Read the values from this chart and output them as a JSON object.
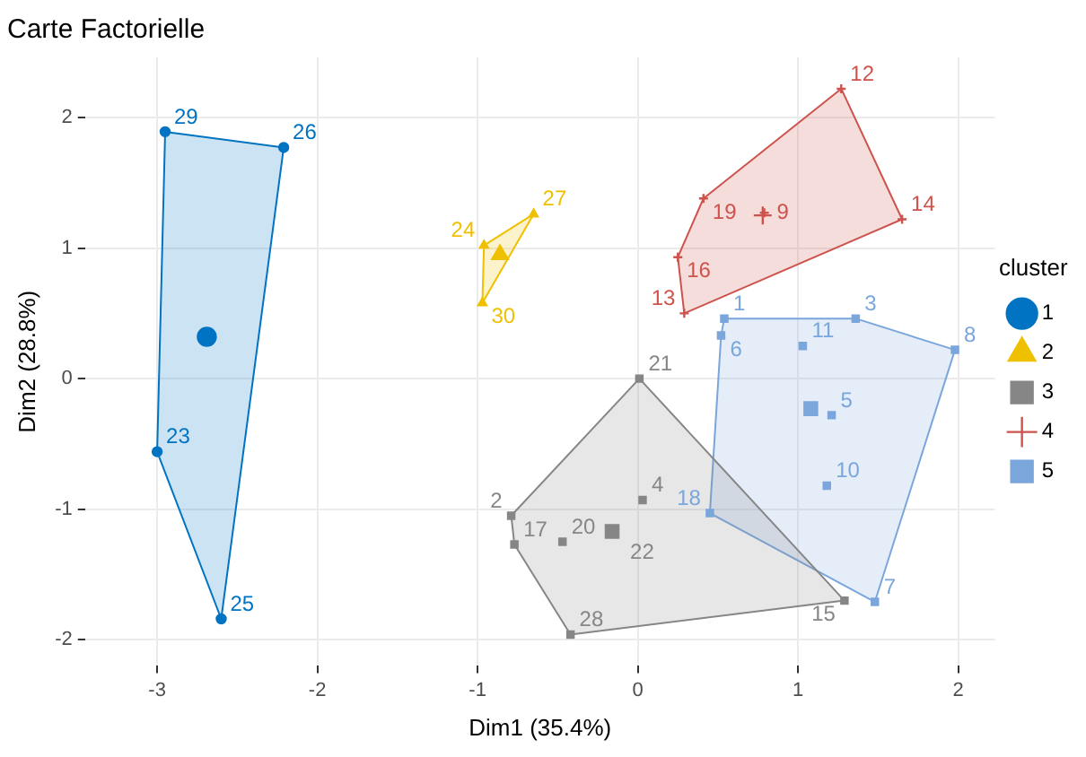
{
  "chart_data": {
    "type": "scatter",
    "title": "Carte Factorielle",
    "xlabel": "Dim1 (35.4%)",
    "ylabel": "Dim2 (28.8%)",
    "legend_title": "cluster",
    "legend": "right",
    "grid": true,
    "xlim": [
      -3.45,
      2.23
    ],
    "ylim": [
      -2.2,
      2.46
    ],
    "xticks": [
      -3,
      -2,
      -1,
      0,
      1,
      2
    ],
    "yticks": [
      -2,
      -1,
      0,
      1,
      2
    ],
    "series": [
      {
        "name": "1",
        "color": "#0073c2",
        "marker": "circle",
        "x": [
          -2.95,
          -2.21,
          -3.0,
          -2.6
        ],
        "values": [
          1.89,
          1.77,
          -0.56,
          -1.84
        ]
      },
      {
        "name": "2",
        "color": "#efc000",
        "marker": "triangle",
        "x": [
          -0.96,
          -0.65,
          -0.97
        ],
        "values": [
          1.02,
          1.26,
          0.58
        ]
      },
      {
        "name": "3",
        "color": "#868686",
        "marker": "square",
        "x": [
          0.01,
          -0.79,
          -0.77,
          -0.47,
          0.03,
          -0.42,
          1.29
        ],
        "values": [
          0.0,
          -1.05,
          -1.27,
          -1.25,
          -0.93,
          -1.96,
          -1.7
        ]
      },
      {
        "name": "4",
        "color": "#cd534c",
        "marker": "cross",
        "x": [
          1.27,
          0.41,
          0.79,
          1.65,
          0.25,
          0.29
        ],
        "values": [
          2.22,
          1.38,
          1.27,
          1.22,
          0.93,
          0.5
        ]
      },
      {
        "name": "5",
        "color": "#7aa6dc",
        "marker": "square",
        "x": [
          0.54,
          1.36,
          0.52,
          1.03,
          1.98,
          1.21,
          1.18,
          0.45,
          1.48
        ],
        "values": [
          0.46,
          0.46,
          0.33,
          0.25,
          0.22,
          -0.28,
          -0.82,
          -1.03,
          -1.71
        ]
      },
      {
        "type": "area",
        "color": "#0073c2",
        "x": [
          -2.95,
          -2.21,
          -2.6,
          -3.0,
          -2.95
        ],
        "values": [
          1.89,
          1.77,
          -1.84,
          -0.56,
          1.89
        ]
      },
      {
        "type": "area",
        "color": "#efc000",
        "x": [
          -0.96,
          -0.65,
          -0.97,
          -0.96
        ],
        "values": [
          1.02,
          1.26,
          0.58,
          1.02
        ]
      },
      {
        "type": "area",
        "color": "#868686",
        "x": [
          0.01,
          1.29,
          -0.42,
          -0.77,
          -0.79,
          0.01
        ],
        "values": [
          0.0,
          -1.7,
          -1.96,
          -1.27,
          -1.05,
          0.0
        ]
      },
      {
        "type": "area",
        "color": "#cd534c",
        "x": [
          1.27,
          1.65,
          0.29,
          0.25,
          0.41,
          1.27
        ],
        "values": [
          2.22,
          1.22,
          0.5,
          0.93,
          1.38,
          2.22
        ]
      },
      {
        "type": "area",
        "color": "#7aa6dc",
        "x": [
          0.54,
          1.36,
          1.98,
          1.48,
          0.45,
          0.52,
          0.54
        ],
        "values": [
          0.46,
          0.46,
          0.22,
          -1.71,
          -1.03,
          0.33,
          0.46
        ]
      },
      {
        "color": "#0073c2",
        "marker": "circle",
        "x": [
          -2.69
        ],
        "values": [
          0.32
        ]
      },
      {
        "color": "#efc000",
        "marker": "triangle",
        "x": [
          -0.86
        ],
        "values": [
          0.95
        ]
      },
      {
        "color": "#868686",
        "marker": "square",
        "x": [
          -0.16
        ],
        "values": [
          -1.17
        ]
      },
      {
        "color": "#cd534c",
        "marker": "cross",
        "x": [
          0.78
        ],
        "values": [
          1.25
        ]
      },
      {
        "color": "#7aa6dc",
        "marker": "square",
        "x": [
          1.08
        ],
        "values": [
          -0.23
        ]
      }
    ],
    "annotations": [
      {
        "text": "29",
        "x": -2.95,
        "y": 1.89
      },
      {
        "text": "26",
        "x": -2.21,
        "y": 1.77
      },
      {
        "text": "23",
        "x": -3.0,
        "y": -0.56
      },
      {
        "text": "25",
        "x": -2.6,
        "y": -1.84
      },
      {
        "text": "24",
        "x": -0.96,
        "y": 1.02
      },
      {
        "text": "27",
        "x": -0.65,
        "y": 1.26
      },
      {
        "text": "30",
        "x": -0.97,
        "y": 0.58
      },
      {
        "text": "21",
        "x": 0.01,
        "y": 0.0
      },
      {
        "text": "2",
        "x": -0.79,
        "y": -1.05
      },
      {
        "text": "17",
        "x": -0.77,
        "y": -1.27
      },
      {
        "text": "20",
        "x": -0.47,
        "y": -1.25
      },
      {
        "text": "4",
        "x": 0.03,
        "y": -0.93
      },
      {
        "text": "22",
        "x": -0.16,
        "y": -1.17
      },
      {
        "text": "28",
        "x": -0.42,
        "y": -1.96
      },
      {
        "text": "15",
        "x": 1.29,
        "y": -1.7
      },
      {
        "text": "12",
        "x": 1.27,
        "y": 2.22
      },
      {
        "text": "19",
        "x": 0.41,
        "y": 1.38
      },
      {
        "text": "9",
        "x": 0.79,
        "y": 1.27
      },
      {
        "text": "14",
        "x": 1.65,
        "y": 1.22
      },
      {
        "text": "16",
        "x": 0.25,
        "y": 0.93
      },
      {
        "text": "13",
        "x": 0.29,
        "y": 0.5
      },
      {
        "text": "1",
        "x": 0.54,
        "y": 0.46
      },
      {
        "text": "3",
        "x": 1.36,
        "y": 0.46
      },
      {
        "text": "6",
        "x": 0.52,
        "y": 0.33
      },
      {
        "text": "11",
        "x": 1.03,
        "y": 0.25
      },
      {
        "text": "8",
        "x": 1.98,
        "y": 0.22
      },
      {
        "text": "5",
        "x": 1.21,
        "y": -0.28
      },
      {
        "text": "10",
        "x": 1.18,
        "y": -0.82
      },
      {
        "text": "18",
        "x": 0.45,
        "y": -1.03
      },
      {
        "text": "7",
        "x": 1.48,
        "y": -1.71
      }
    ]
  }
}
